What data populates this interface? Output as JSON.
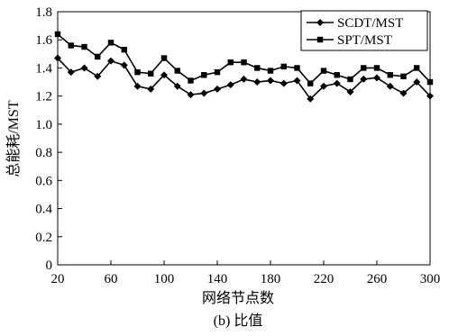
{
  "chart_data": {
    "type": "line",
    "title": "",
    "caption": "(b) 比值",
    "xlabel": "网络节点数",
    "ylabel": "总能耗/MST",
    "x": [
      20,
      30,
      40,
      50,
      60,
      70,
      80,
      90,
      100,
      110,
      120,
      130,
      140,
      150,
      160,
      170,
      180,
      190,
      200,
      210,
      220,
      230,
      240,
      250,
      260,
      270,
      280,
      290,
      300
    ],
    "xlim": [
      20,
      300
    ],
    "xticks": [
      20,
      60,
      100,
      140,
      180,
      220,
      260,
      300
    ],
    "ylim": [
      0,
      1.8
    ],
    "yticks": [
      0,
      0.2,
      0.4,
      0.6,
      0.8,
      1.0,
      1.2,
      1.4,
      1.6,
      1.8
    ],
    "ytick_labels": [
      "0",
      "0.2",
      "0.4",
      "0.6",
      "0.8",
      "1.0",
      "1.2",
      "1.4",
      "1.6",
      "1.8"
    ],
    "grid": false,
    "legend_position": "top-right",
    "series": [
      {
        "name": "SCDT/MST",
        "marker": "diamond",
        "color": "#000000",
        "values": [
          1.47,
          1.37,
          1.4,
          1.34,
          1.45,
          1.42,
          1.27,
          1.25,
          1.35,
          1.27,
          1.21,
          1.22,
          1.25,
          1.28,
          1.32,
          1.3,
          1.31,
          1.29,
          1.31,
          1.18,
          1.27,
          1.29,
          1.23,
          1.32,
          1.33,
          1.27,
          1.22,
          1.3,
          1.2
        ]
      },
      {
        "name": "SPT/MST",
        "marker": "square",
        "color": "#000000",
        "values": [
          1.64,
          1.56,
          1.55,
          1.48,
          1.58,
          1.53,
          1.37,
          1.36,
          1.47,
          1.38,
          1.31,
          1.35,
          1.37,
          1.44,
          1.44,
          1.4,
          1.38,
          1.41,
          1.4,
          1.29,
          1.38,
          1.35,
          1.32,
          1.4,
          1.4,
          1.35,
          1.34,
          1.4,
          1.3
        ]
      }
    ]
  }
}
